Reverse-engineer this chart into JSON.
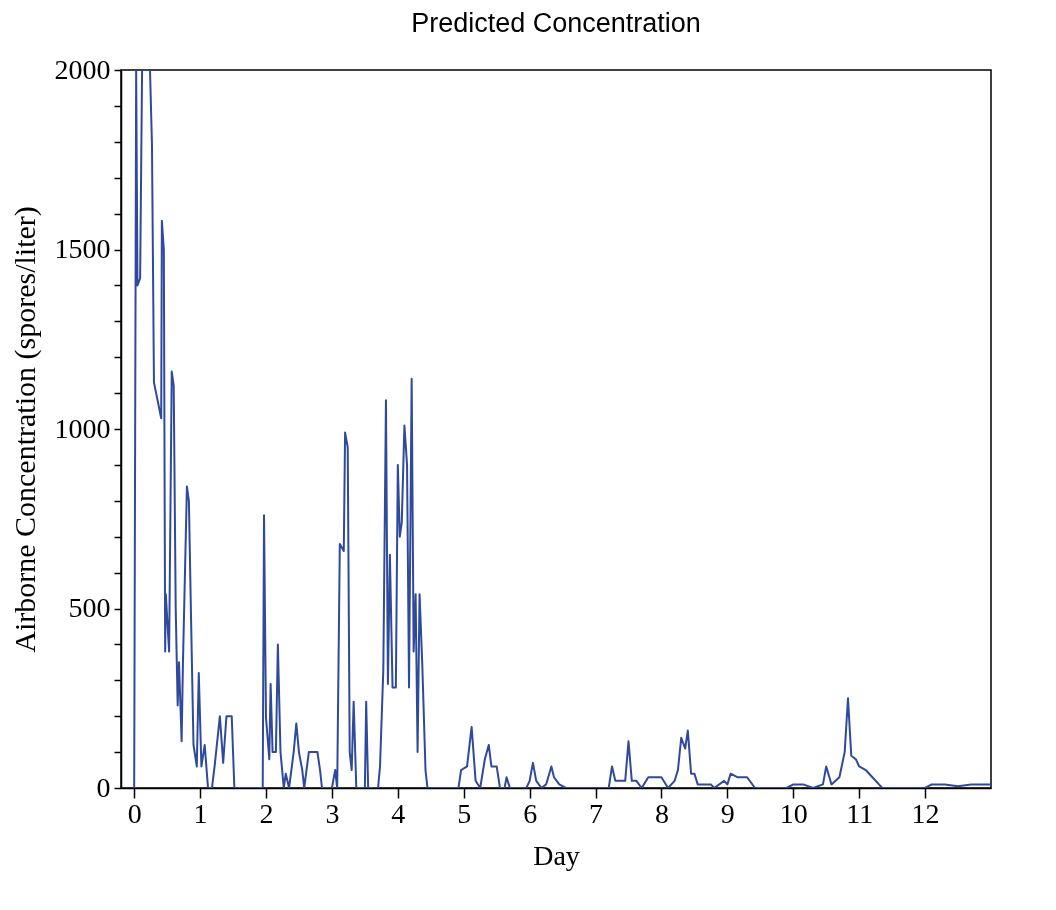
{
  "chart_data": {
    "type": "line",
    "title": "Predicted Concentration",
    "xlabel": "Day",
    "ylabel": "Airborne Concentration (spores/liter)",
    "xlim": [
      -0.2,
      13
    ],
    "xticks": [
      0,
      1,
      2,
      3,
      4,
      5,
      6,
      7,
      8,
      9,
      10,
      11,
      12
    ],
    "ylim": [
      0,
      2000
    ],
    "yticks": [
      0,
      {
        "value": 100,
        "label": null
      },
      {
        "value": 200,
        "label": null
      },
      {
        "value": 300,
        "label": null
      },
      {
        "value": 400,
        "label": null
      },
      500,
      {
        "value": 600,
        "label": null
      },
      {
        "value": 700,
        "label": null
      },
      {
        "value": 800,
        "label": null
      },
      {
        "value": 900,
        "label": null
      },
      1000,
      {
        "value": 1100,
        "label": null
      },
      {
        "value": 1200,
        "label": null
      },
      {
        "value": 1300,
        "label": null
      },
      {
        "value": 1400,
        "label": null
      },
      1500,
      {
        "value": 1600,
        "label": null
      },
      {
        "value": 1700,
        "label": null
      },
      {
        "value": 1800,
        "label": null
      },
      {
        "value": 1900,
        "label": null
      },
      2000
    ],
    "grid": false,
    "series": [
      {
        "color": "#2f4a9c",
        "x": [
          0,
          0.03,
          0.05,
          0.09,
          0.12,
          0.24,
          0.27,
          0.3,
          0.41,
          0.42,
          0.45,
          0.47,
          0.48,
          0.53,
          0.57,
          0.6,
          0.63,
          0.66,
          0.68,
          0.72,
          0.74,
          0.8,
          0.83,
          0.86,
          0.9,
          0.95,
          0.98,
          1.02,
          1.07,
          1.12,
          1.18,
          1.22,
          1.3,
          1.35,
          1.4,
          1.48,
          1.52,
          1.95,
          1.97,
          2.0,
          2.05,
          2.07,
          2.1,
          2.15,
          2.18,
          2.22,
          2.27,
          2.3,
          2.35,
          2.42,
          2.46,
          2.5,
          2.55,
          2.58,
          2.65,
          2.78,
          2.82,
          2.85,
          3.0,
          3.05,
          3.08,
          3.12,
          3.18,
          3.2,
          3.24,
          3.27,
          3.3,
          3.33,
          3.37,
          3.5,
          3.52,
          3.55,
          3.7,
          3.73,
          3.78,
          3.82,
          3.85,
          3.88,
          3.92,
          3.97,
          4.0,
          4.03,
          4.06,
          4.1,
          4.14,
          4.17,
          4.21,
          4.24,
          4.27,
          4.3,
          4.33,
          4.37,
          4.42,
          4.45,
          4.92,
          4.96,
          5.05,
          5.12,
          5.18,
          5.25,
          5.32,
          5.38,
          5.42,
          5.5,
          5.55,
          5.62,
          5.65,
          5.7,
          5.95,
          6.0,
          6.05,
          6.1,
          6.18,
          6.25,
          6.33,
          6.37,
          6.45,
          6.55,
          7.2,
          7.25,
          7.3,
          7.45,
          7.5,
          7.55,
          7.62,
          7.7,
          7.8,
          8.0,
          8.1,
          8.2,
          8.25,
          8.3,
          8.36,
          8.4,
          8.45,
          8.5,
          8.55,
          8.75,
          8.8,
          8.95,
          9.0,
          9.05,
          9.15,
          9.3,
          9.42,
          9.9,
          10.0,
          10.15,
          10.3,
          10.45,
          10.5,
          10.58,
          10.7,
          10.78,
          10.83,
          10.88,
          10.95,
          11.0,
          11.1,
          11.2,
          11.3,
          11.35,
          12.0,
          12.1,
          12.3,
          12.5,
          12.7,
          12.9,
          13.0
        ],
        "values": [
          0,
          2000,
          1400,
          1420,
          2000,
          2000,
          1790,
          1130,
          1030,
          1580,
          1500,
          380,
          540,
          380,
          1160,
          1120,
          500,
          230,
          350,
          130,
          350,
          840,
          800,
          500,
          120,
          60,
          320,
          60,
          120,
          0,
          0,
          60,
          200,
          70,
          200,
          200,
          0,
          0,
          760,
          196,
          80,
          290,
          100,
          100,
          400,
          100,
          0,
          40,
          0,
          100,
          180,
          100,
          50,
          0,
          100,
          100,
          50,
          0,
          0,
          50,
          0,
          680,
          660,
          990,
          950,
          100,
          50,
          240,
          0,
          0,
          240,
          0,
          0,
          60,
          330,
          1080,
          290,
          650,
          280,
          280,
          900,
          700,
          740,
          1010,
          900,
          280,
          1140,
          380,
          540,
          100,
          540,
          350,
          50,
          0,
          0,
          50,
          60,
          170,
          20,
          0,
          80,
          120,
          60,
          60,
          0,
          0,
          30,
          0,
          0,
          20,
          70,
          20,
          0,
          10,
          60,
          30,
          10,
          0,
          0,
          60,
          20,
          20,
          130,
          20,
          20,
          0,
          30,
          30,
          0,
          20,
          50,
          140,
          110,
          160,
          40,
          40,
          10,
          10,
          0,
          20,
          10,
          40,
          30,
          30,
          0,
          0,
          10,
          10,
          0,
          10,
          60,
          10,
          30,
          100,
          250,
          90,
          80,
          60,
          50,
          30,
          10,
          0,
          0,
          10,
          10,
          5,
          10,
          10,
          10
        ]
      }
    ]
  }
}
